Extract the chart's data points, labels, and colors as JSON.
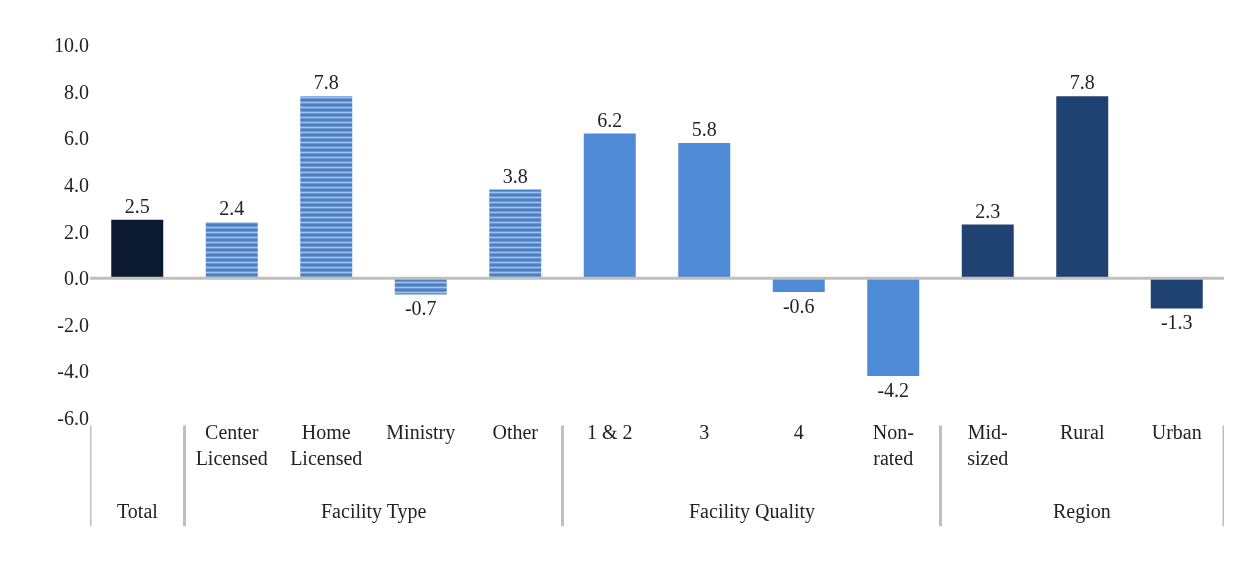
{
  "chart_data": {
    "type": "bar",
    "categories": [
      null,
      "Center Licensed",
      "Home Licensed",
      "Ministry",
      "Other",
      "1 & 2",
      "3",
      "4",
      "Non-rated",
      "Mid-sized",
      "Rural",
      "Urban"
    ],
    "values": [
      2.5,
      2.4,
      7.8,
      -0.7,
      3.8,
      6.2,
      5.8,
      -0.6,
      -4.2,
      2.3,
      7.8,
      -1.3
    ],
    "colors": [
      "#0b1a30",
      "#4a80c8",
      "#4a80c8",
      "#4a80c8",
      "#4a80c8",
      "#4f8ad6",
      "#4f8ad6",
      "#4f8ad6",
      "#4f8ad6",
      "#1f4273",
      "#1f4273",
      "#1f4273"
    ],
    "ylim": [
      -6,
      10
    ],
    "yticks": [
      {
        "value": -6,
        "label": "-6.0"
      },
      {
        "value": -4,
        "label": "-4.0"
      },
      {
        "value": -2,
        "label": "-2.0"
      },
      {
        "value": 0,
        "label": "0.0"
      },
      {
        "value": 2,
        "label": "2.0"
      },
      {
        "value": 4,
        "label": "4.0"
      },
      {
        "value": 6,
        "label": "6.0"
      },
      {
        "value": 8,
        "label": "8.0"
      },
      {
        "value": 10,
        "label": "10.0"
      }
    ],
    "data_labels": true,
    "annotations": [
      "Total",
      "Facility Type",
      "Facility Quality",
      "Region"
    ]
  }
}
